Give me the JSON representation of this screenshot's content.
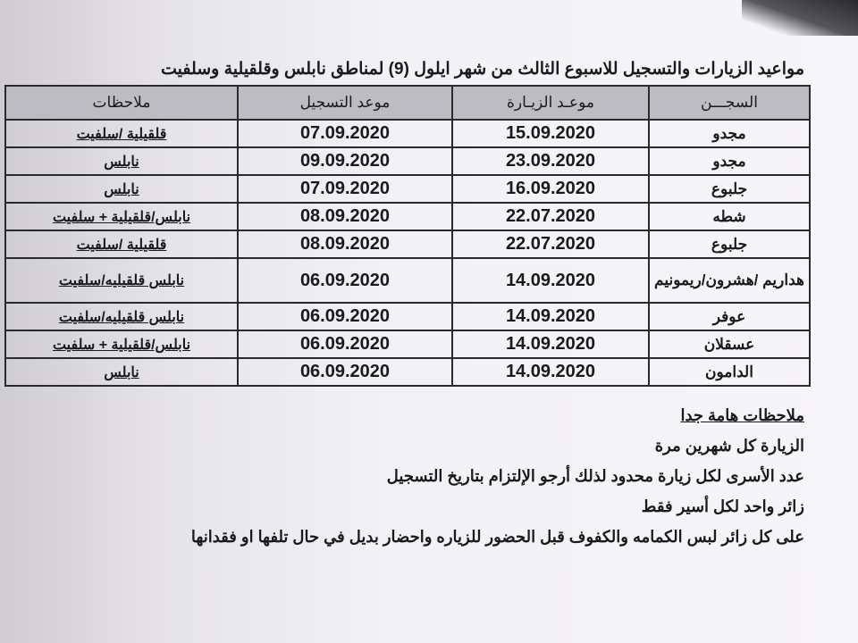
{
  "title": "مواعيد الزيارات والتسجيل للاسبوع الثالث من شهر ايلول (9) لمناطق نابلس وقلقيلية وسلفيت",
  "table": {
    "headers": [
      "السجـــن",
      "موعـد الزيـارة",
      "موعد التسجيل",
      "ملاحظات"
    ],
    "rows": [
      {
        "prison": "مجدو",
        "visit": "15.09.2020",
        "register": "07.09.2020",
        "notes": "قلقيلية /سلفيت"
      },
      {
        "prison": "مجدو",
        "visit": "23.09.2020",
        "register": "09.09.2020",
        "notes": "نابلس"
      },
      {
        "prison": "جلبوع",
        "visit": "16.09.2020",
        "register": "07.09.2020",
        "notes": "نابلس"
      },
      {
        "prison": "شطه",
        "visit": "22.07.2020",
        "register": "08.09.2020",
        "notes": "نابلس/قلقيلية + سلفيت"
      },
      {
        "prison": "جلبوع",
        "visit": "22.07.2020",
        "register": "08.09.2020",
        "notes": "قلقيلية /سلفيت"
      },
      {
        "prison": "هداريم /هشرون/ريمونيم",
        "visit": "14.09.2020",
        "register": "06.09.2020",
        "notes": "نابلس قلقيليه/سلفيت"
      },
      {
        "prison": "عوفر",
        "visit": "14.09.2020",
        "register": "06.09.2020",
        "notes": "نابلس قلقيليه/سلفيت"
      },
      {
        "prison": "عسقلان",
        "visit": "14.09.2020",
        "register": "06.09.2020",
        "notes": "نابلس/قلقيلية + سلفيت"
      },
      {
        "prison": "الدامون",
        "visit": "14.09.2020",
        "register": "06.09.2020",
        "notes": "نابلس"
      }
    ]
  },
  "important_notes": {
    "heading": "ملاحظات هامة جدا",
    "lines": [
      "الزيارة كل شهرين مرة",
      "عدد الأسرى لكل زيارة محدود لذلك أرجو الإلتزام بتاريخ التسجيل",
      "زائر واحد لكل أسير فقط",
      "على كل زائر لبس الكمامه والكفوف قبل الحضور للزياره واحضار بديل في حال تلفها او فقدانها"
    ]
  }
}
